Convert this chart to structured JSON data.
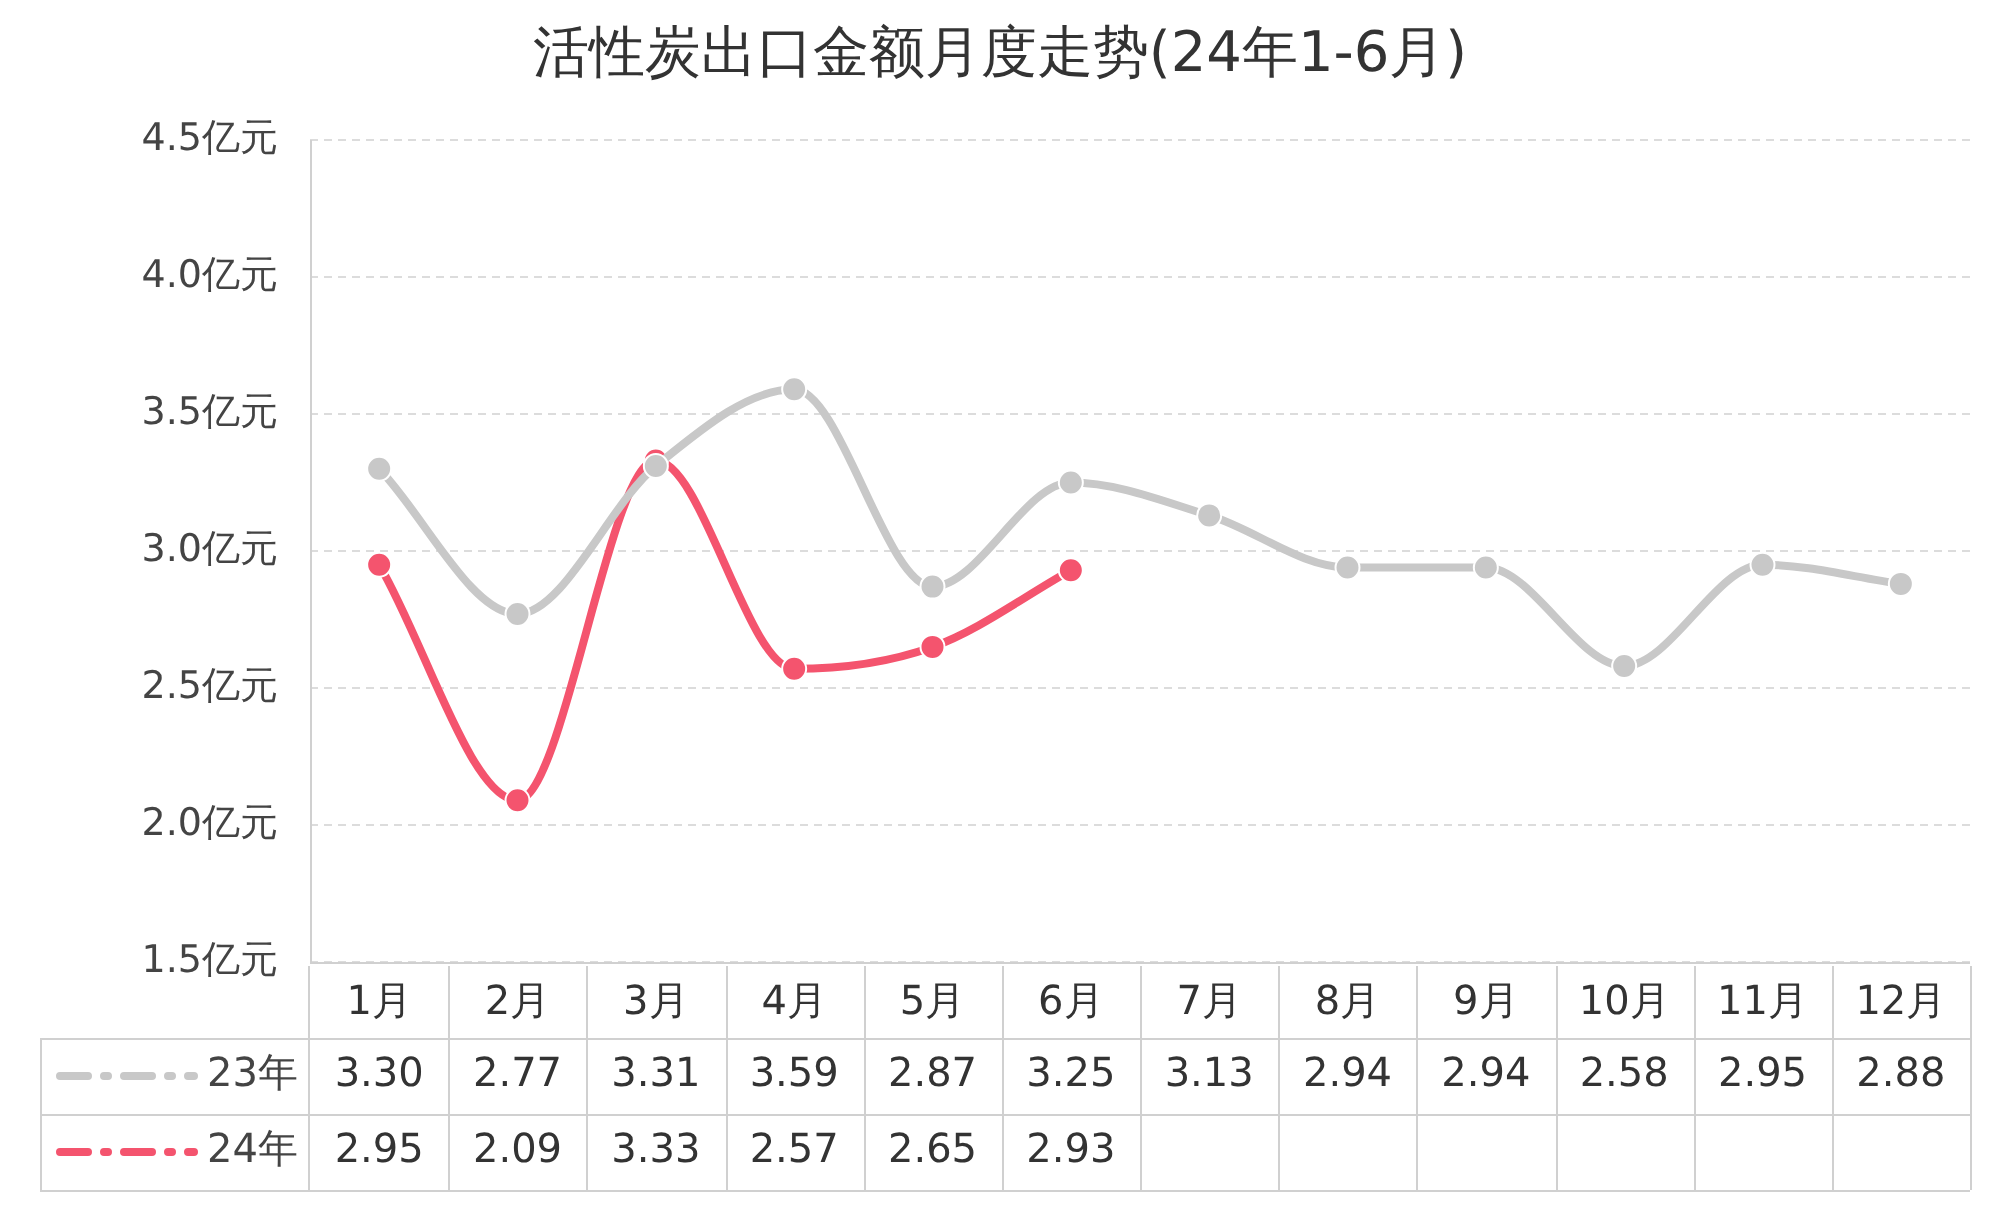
{
  "chart_data": {
    "type": "line",
    "title": "活性炭出口金额月度走势(24年1-6月)",
    "categories": [
      "1月",
      "2月",
      "3月",
      "4月",
      "5月",
      "6月",
      "7月",
      "8月",
      "9月",
      "10月",
      "11月",
      "12月"
    ],
    "series": [
      {
        "name": "23年",
        "color": "#c8c8c8",
        "values": [
          3.3,
          2.77,
          3.31,
          3.59,
          2.87,
          3.25,
          3.13,
          2.94,
          2.94,
          2.58,
          2.95,
          2.88
        ],
        "value_labels": [
          "3.30",
          "2.77",
          "3.31",
          "3.59",
          "2.87",
          "3.25",
          "3.13",
          "2.94",
          "2.94",
          "2.58",
          "2.95",
          "2.88"
        ]
      },
      {
        "name": "24年",
        "color": "#f4546e",
        "values": [
          2.95,
          2.09,
          3.33,
          2.57,
          2.65,
          2.93,
          null,
          null,
          null,
          null,
          null,
          null
        ],
        "value_labels": [
          "2.95",
          "2.09",
          "3.33",
          "2.57",
          "2.65",
          "2.93",
          null,
          null,
          null,
          null,
          null,
          null
        ]
      }
    ],
    "ylim": [
      1.5,
      4.5
    ],
    "yticks": [
      {
        "value": 1.5,
        "label": "1.5亿元"
      },
      {
        "value": 2.0,
        "label": "2.0亿元"
      },
      {
        "value": 2.5,
        "label": "2.5亿元"
      },
      {
        "value": 3.0,
        "label": "3.0亿元"
      },
      {
        "value": 3.5,
        "label": "3.5亿元"
      },
      {
        "value": 4.0,
        "label": "4.0亿元"
      },
      {
        "value": 4.5,
        "label": "4.5亿元"
      }
    ],
    "grid": "y",
    "legend": "bottom left",
    "marker": "circle",
    "line_style": "solid"
  }
}
